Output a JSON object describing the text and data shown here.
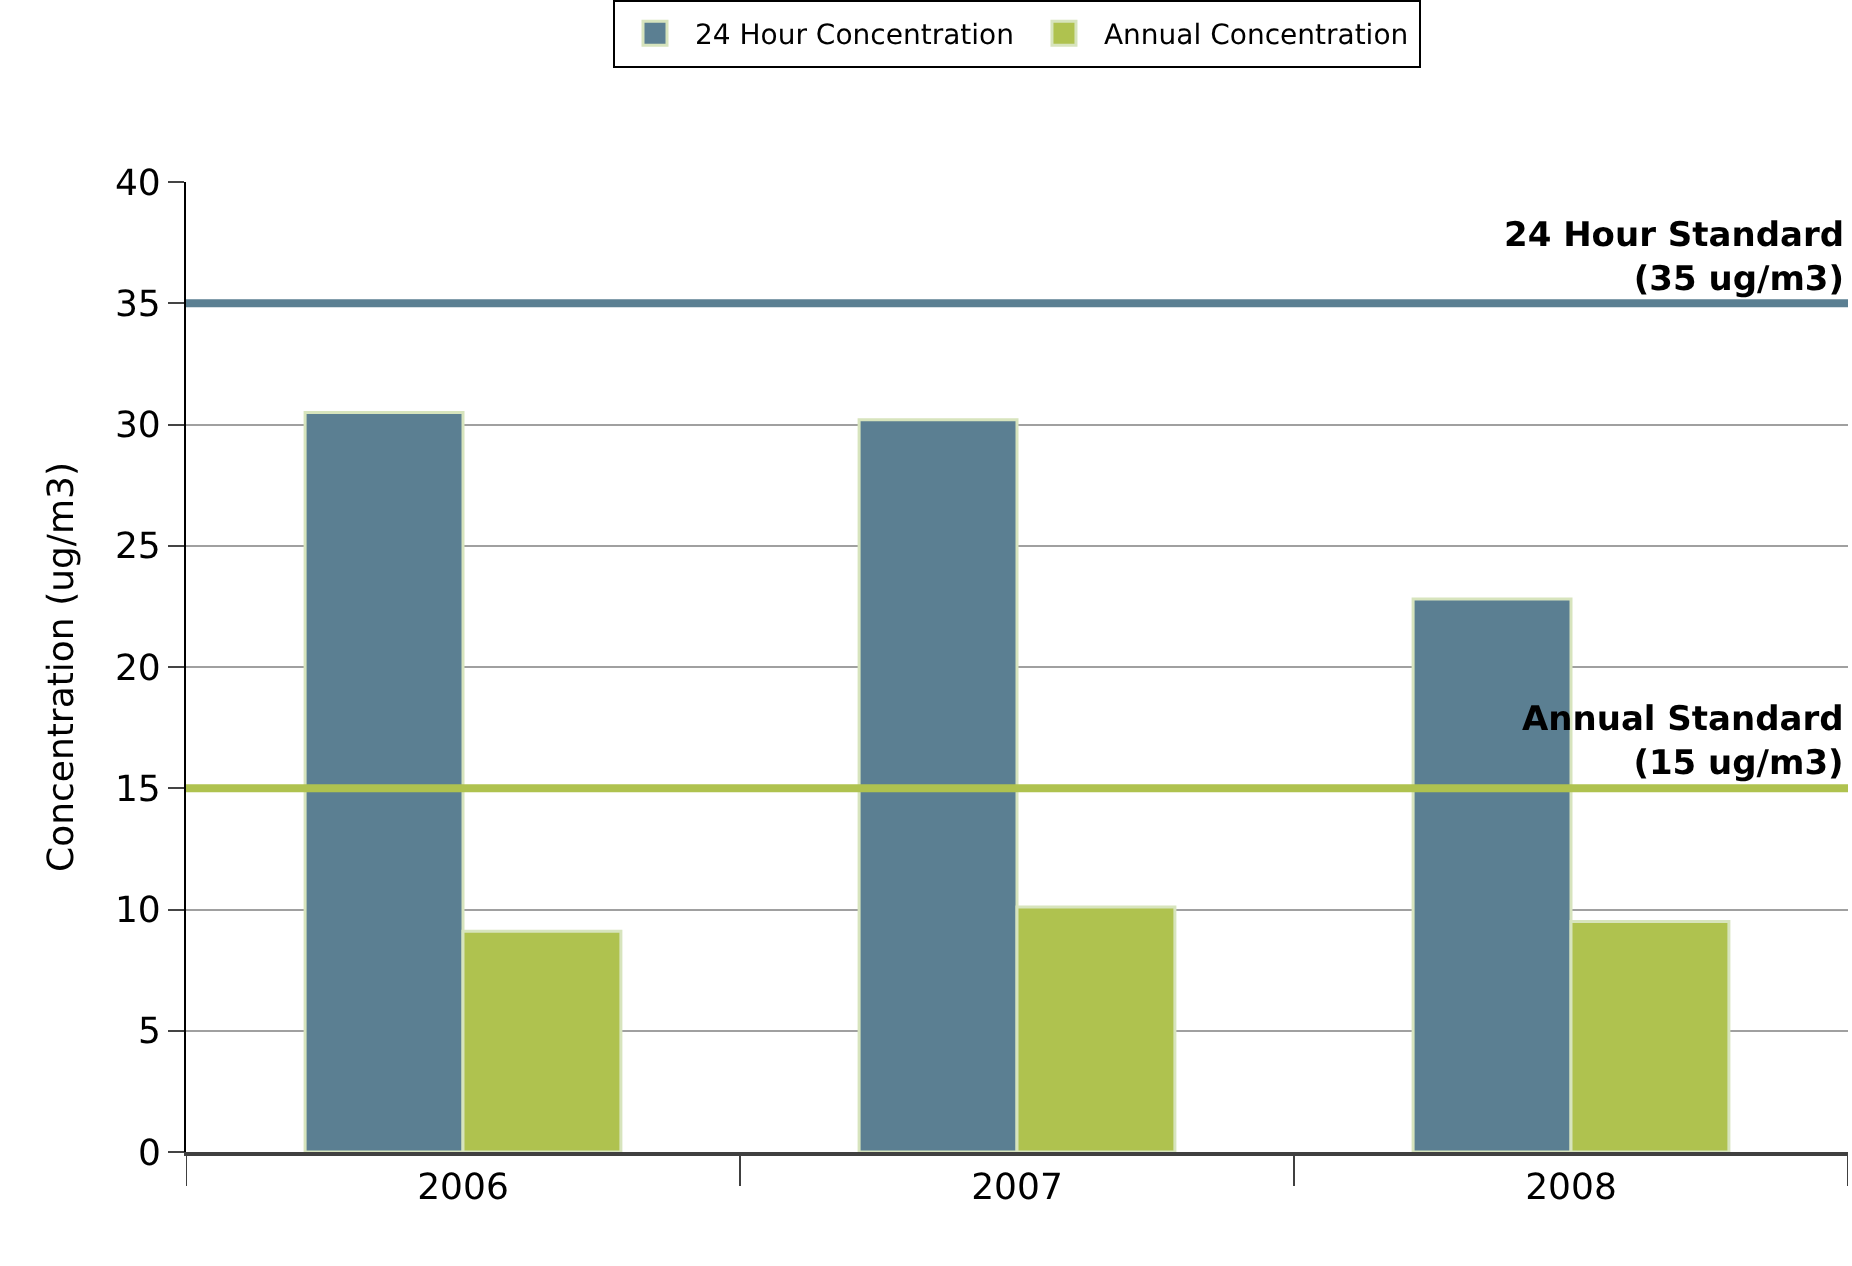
{
  "chart_data": {
    "type": "bar",
    "ylabel": "Concentration (ug/m3)",
    "categories": [
      "2006",
      "2007",
      "2008"
    ],
    "series": [
      {
        "name": "24 Hour Concentration",
        "color": "#5b7f92",
        "values": [
          30.5,
          30.2,
          22.8
        ]
      },
      {
        "name": "Annual Concentration",
        "color": "#afc24f",
        "values": [
          9.1,
          10.1,
          9.5
        ]
      }
    ],
    "ylim": [
      0,
      40
    ],
    "yticks": [
      0,
      5,
      10,
      15,
      20,
      25,
      30,
      35,
      40
    ],
    "grid": "y",
    "legend": "top",
    "ref_lines": [
      {
        "axis": "y",
        "value": 35,
        "label": "24 Hour Standard\n(35 ug/m3)",
        "color": "#5b7f92"
      },
      {
        "axis": "y",
        "value": 15,
        "label": "Annual Standard\n(15 ug/m3)",
        "color": "#afc24f"
      }
    ]
  }
}
